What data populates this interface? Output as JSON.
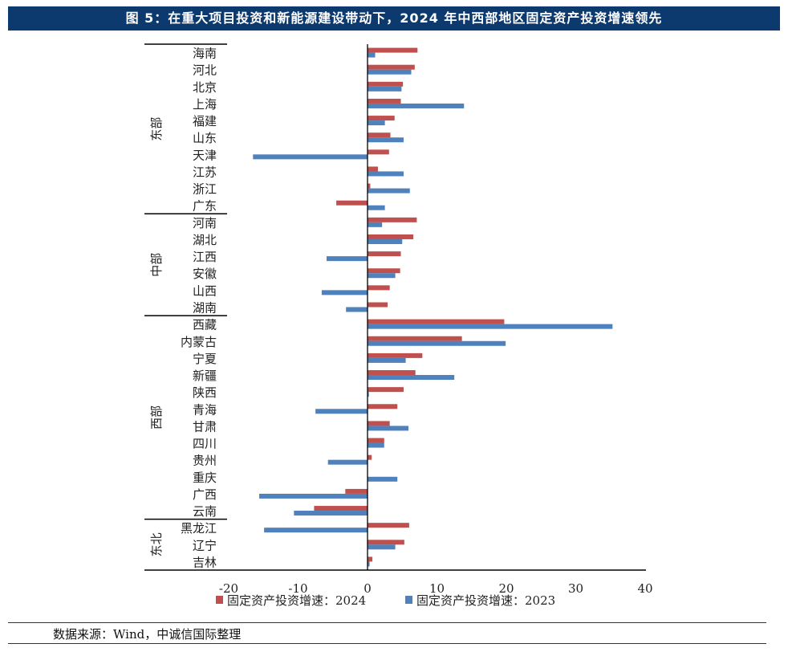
{
  "title": "图 5：在重大项目投资和新能源建设带动下，2024 年中西部地区固定资产投资增速领先",
  "source": "数据来源：Wind，中诚信国际整理",
  "colors": {
    "title_bg": "#0c3a6e",
    "series_2024": "#c0504d",
    "series_2023": "#4f81bd"
  },
  "chart_data": {
    "type": "bar",
    "orientation": "horizontal",
    "title": "图 5：在重大项目投资和新能源建设带动下，2024 年中西部地区固定资产投资增速领先",
    "xlabel": "",
    "ylabel": "",
    "xlim": [
      -20,
      40
    ],
    "xticks": [
      -20,
      -10,
      0,
      10,
      20,
      30,
      40
    ],
    "legend_position": "bottom",
    "groups": [
      {
        "name": "东部",
        "count": 10
      },
      {
        "name": "中部",
        "count": 6
      },
      {
        "name": "西部",
        "count": 12
      },
      {
        "name": "东北",
        "count": 3
      }
    ],
    "categories": [
      "海南",
      "河北",
      "北京",
      "上海",
      "福建",
      "山东",
      "天津",
      "江苏",
      "浙江",
      "广东",
      "河南",
      "湖北",
      "江西",
      "安徽",
      "山西",
      "湖南",
      "西藏",
      "内蒙古",
      "宁夏",
      "新疆",
      "陕西",
      "青海",
      "甘肃",
      "四川",
      "贵州",
      "重庆",
      "广西",
      "云南",
      "黑龙江",
      "辽宁",
      "吉林"
    ],
    "series": [
      {
        "name": "固定资产投资增速：2024",
        "color": "#c0504d",
        "values": [
          7.2,
          6.8,
          5.1,
          4.8,
          3.9,
          3.3,
          3.1,
          1.5,
          0.4,
          -4.5,
          7.1,
          6.6,
          4.8,
          4.7,
          3.2,
          2.9,
          19.7,
          13.6,
          7.9,
          6.9,
          5.2,
          4.3,
          3.2,
          2.4,
          0.6,
          0.0,
          -3.2,
          -7.7,
          6.0,
          5.3,
          0.7
        ]
      },
      {
        "name": "固定资产投资增速：2023",
        "color": "#4f81bd",
        "values": [
          1.1,
          6.3,
          4.9,
          13.9,
          2.5,
          5.2,
          -16.5,
          5.2,
          6.1,
          2.5,
          2.1,
          5.0,
          -5.9,
          4.0,
          -6.6,
          -3.1,
          35.3,
          19.9,
          5.5,
          12.5,
          0.2,
          -7.5,
          5.9,
          2.4,
          -5.7,
          4.3,
          -15.6,
          -10.6,
          -14.9,
          4.0,
          0.3
        ]
      }
    ]
  }
}
